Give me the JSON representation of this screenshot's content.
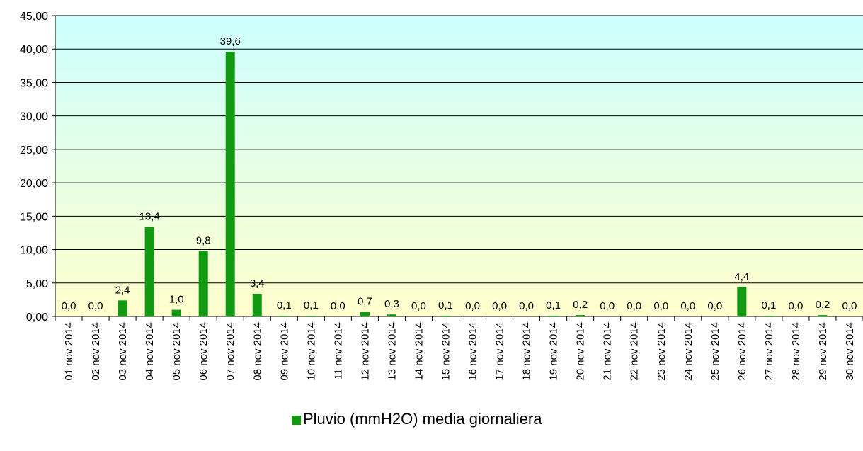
{
  "chart_data": {
    "type": "bar",
    "categories": [
      "01 nov 2014",
      "02 nov 2014",
      "03 nov 2014",
      "04 nov 2014",
      "05 nov 2014",
      "06 nov 2014",
      "07 nov 2014",
      "08 nov 2014",
      "09 nov 2014",
      "10 nov 2014",
      "11 nov 2014",
      "12 nov 2014",
      "13 nov 2014",
      "14 nov 2014",
      "15 nov 2014",
      "16 nov 2014",
      "17 nov 2014",
      "18 nov 2014",
      "19 nov 2014",
      "20 nov 2014",
      "21 nov 2014",
      "22 nov 2014",
      "23 nov 2014",
      "24 nov 2014",
      "25 nov 2014",
      "26 nov 2014",
      "27 nov 2014",
      "28 nov 2014",
      "29 nov 2014",
      "30 nov 2014"
    ],
    "series": [
      {
        "name": "Pluvio (mmH2O) media giornaliera",
        "color": "#119911",
        "values": [
          0,
          0,
          2.4,
          13.4,
          1.0,
          9.8,
          39.6,
          3.4,
          0.1,
          0.1,
          0,
          0.7,
          0.3,
          0,
          0.1,
          0,
          0,
          0,
          0.1,
          0.2,
          0,
          0,
          0,
          0,
          0,
          4.4,
          0.1,
          0,
          0.2,
          0
        ],
        "value_labels": [
          "0,0",
          "0,0",
          "2,4",
          "13,4",
          "1,0",
          "9,8",
          "39,6",
          "3,4",
          "0,1",
          "0,1",
          "0,0",
          "0,7",
          "0,3",
          "0,0",
          "0,1",
          "0,0",
          "0,0",
          "0,0",
          "0,1",
          "0,2",
          "0,0",
          "0,0",
          "0,0",
          "0,0",
          "0,0",
          "4,4",
          "0,1",
          "0,0",
          "0,2",
          "0,0"
        ]
      }
    ],
    "ylim": [
      0,
      45
    ],
    "yticks": [
      {
        "value": 0,
        "label": "0,00"
      },
      {
        "value": 5,
        "label": "5,00"
      },
      {
        "value": 10,
        "label": "10,00"
      },
      {
        "value": 15,
        "label": "15,00"
      },
      {
        "value": 20,
        "label": "20,00"
      },
      {
        "value": 25,
        "label": "25,00"
      },
      {
        "value": 30,
        "label": "30,00"
      },
      {
        "value": 35,
        "label": "35,00"
      },
      {
        "value": 40,
        "label": "40,00"
      },
      {
        "value": 45,
        "label": "45,00"
      }
    ],
    "grid": true,
    "legend": "bottom"
  }
}
